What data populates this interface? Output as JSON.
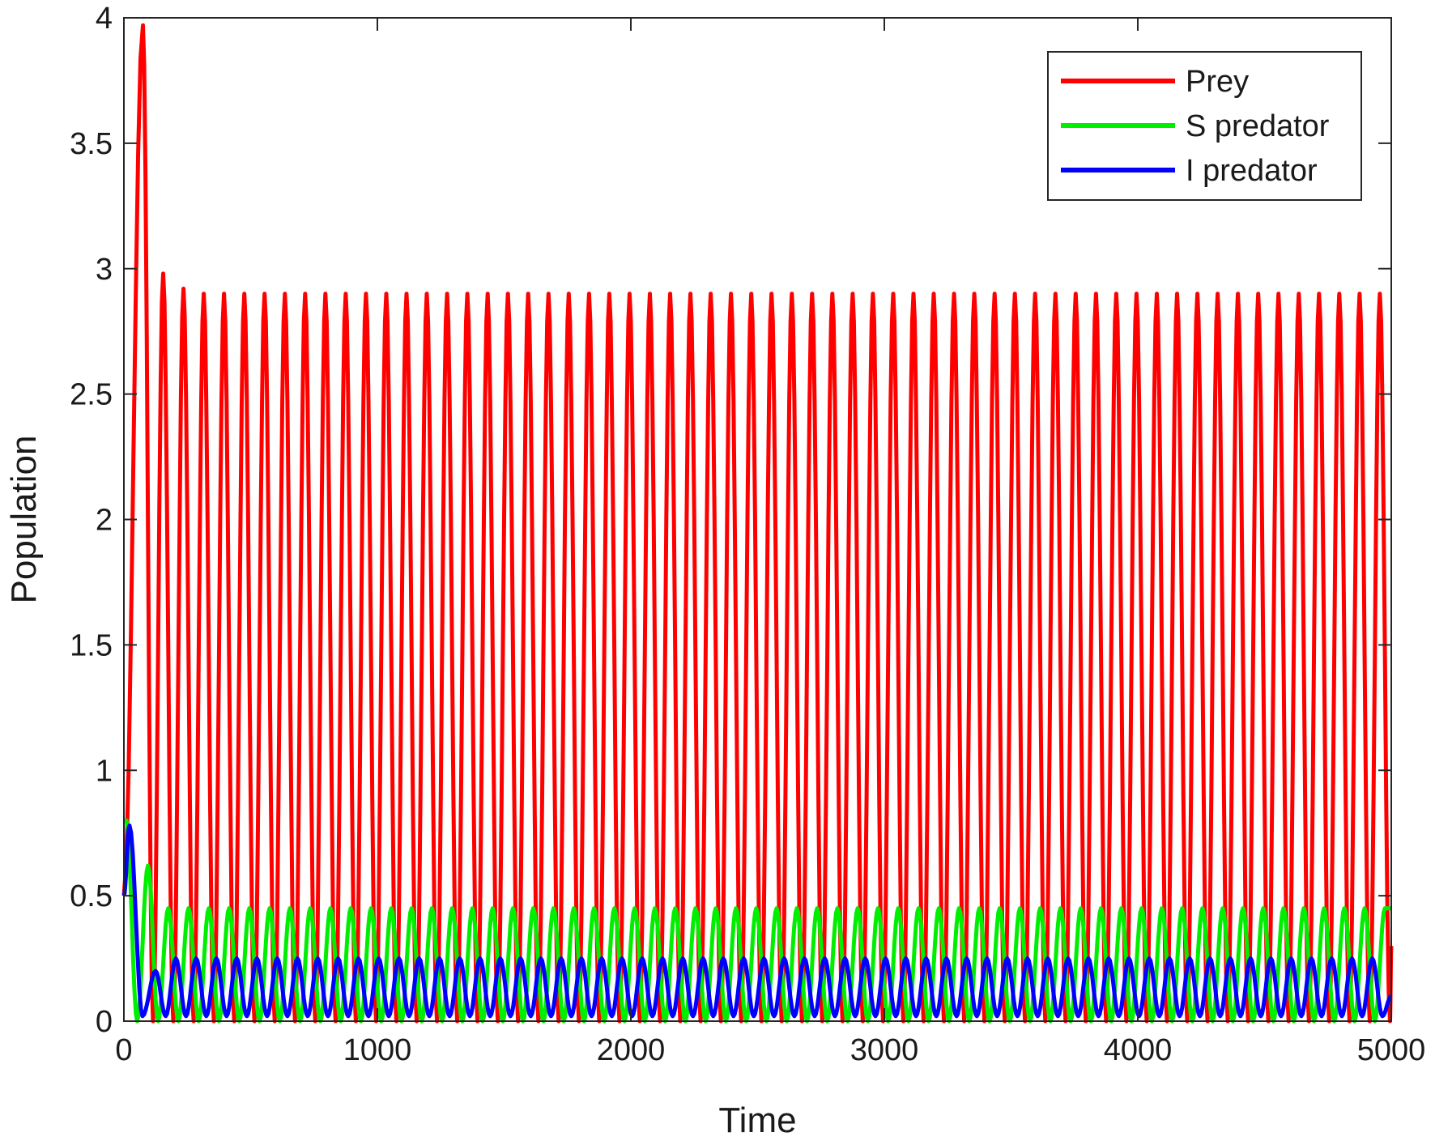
{
  "chart_data": {
    "type": "line",
    "xlabel": "Time",
    "ylabel": "Population",
    "xlim": [
      0,
      5000
    ],
    "ylim": [
      0,
      4
    ],
    "xticks": [
      0,
      1000,
      2000,
      3000,
      4000,
      5000
    ],
    "xtick_labels": [
      "0",
      "1000",
      "2000",
      "3000",
      "4000",
      "5000"
    ],
    "yticks": [
      0,
      0.5,
      1,
      1.5,
      2,
      2.5,
      3,
      3.5,
      4
    ],
    "ytick_labels": [
      "0",
      "0.5",
      "1",
      "1.5",
      "2",
      "2.5",
      "3",
      "3.5",
      "4"
    ],
    "grid": false,
    "legend_position": "top-right",
    "series": [
      {
        "name": "Prey",
        "color": "#ff0000",
        "initial_value": 0.5,
        "transient_peaks": [
          {
            "t": 75,
            "value": 3.97
          },
          {
            "t": 155,
            "value": 2.98
          },
          {
            "t": 235,
            "value": 2.92
          }
        ],
        "oscillation": {
          "period": 80,
          "start": 315,
          "max": 2.9,
          "min": 0.0
        },
        "end_value": 0.3
      },
      {
        "name": "S predator",
        "color": "#00ee00",
        "initial_value": 0.8,
        "transient_peaks": [
          {
            "t": 10,
            "value": 0.8
          },
          {
            "t": 95,
            "value": 0.62
          }
        ],
        "oscillation": {
          "period": 80,
          "start": 175,
          "max": 0.45,
          "min": 0.0
        },
        "end_value": 0.45
      },
      {
        "name": "I predator",
        "color": "#0000ff",
        "initial_value": 0.5,
        "transient_peaks": [
          {
            "t": 22,
            "value": 0.78
          },
          {
            "t": 125,
            "value": 0.2
          }
        ],
        "oscillation": {
          "period": 80,
          "start": 205,
          "max": 0.25,
          "min": 0.02
        },
        "end_value": 0.1
      }
    ]
  }
}
